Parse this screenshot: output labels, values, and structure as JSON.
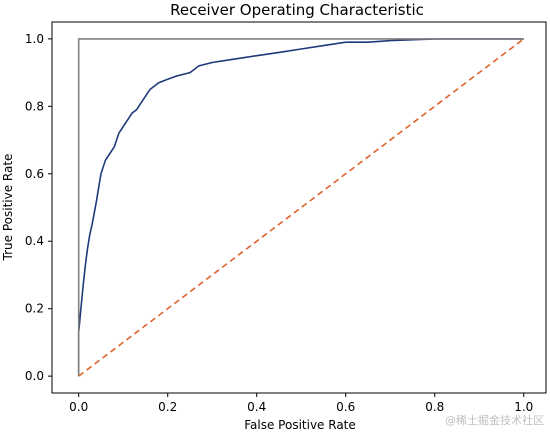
{
  "chart_data": {
    "type": "line",
    "title": "Receiver Operating Characteristic",
    "xlabel": "False Positive Rate",
    "ylabel": "True Positive Rate",
    "xlim": [
      -0.06,
      1.05
    ],
    "ylim": [
      -0.05,
      1.05
    ],
    "x_ticks": [
      "0.0",
      "0.2",
      "0.4",
      "0.6",
      "0.8",
      "1.0"
    ],
    "y_ticks": [
      "0.0",
      "0.2",
      "0.4",
      "0.6",
      "0.8",
      "1.0"
    ],
    "grid": false,
    "legend": "none",
    "series": [
      {
        "style": "solid",
        "color": "#1f3a7a",
        "x": [
          0.0,
          0.0,
          0.005,
          0.01,
          0.015,
          0.02,
          0.025,
          0.03,
          0.04,
          0.045,
          0.05,
          0.055,
          0.06,
          0.07,
          0.08,
          0.09,
          0.1,
          0.11,
          0.12,
          0.13,
          0.14,
          0.15,
          0.16,
          0.18,
          0.2,
          0.22,
          0.25,
          0.27,
          0.3,
          0.35,
          0.4,
          0.45,
          0.5,
          0.55,
          0.6,
          0.65,
          0.7,
          0.8,
          0.9,
          1.0
        ],
        "y": [
          0.0,
          0.13,
          0.2,
          0.27,
          0.33,
          0.38,
          0.42,
          0.45,
          0.52,
          0.56,
          0.6,
          0.62,
          0.64,
          0.66,
          0.68,
          0.72,
          0.74,
          0.76,
          0.78,
          0.79,
          0.81,
          0.83,
          0.85,
          0.87,
          0.88,
          0.89,
          0.9,
          0.92,
          0.93,
          0.94,
          0.95,
          0.96,
          0.97,
          0.98,
          0.99,
          0.99,
          0.995,
          1.0,
          1.0,
          1.0
        ]
      },
      {
        "style": "solid",
        "color": "#808080",
        "x": [
          0.0,
          0.0,
          1.0
        ],
        "y": [
          0.0,
          1.0,
          1.0
        ]
      },
      {
        "style": "dashed",
        "color": "#e0622a",
        "x": [
          0.0,
          1.0
        ],
        "y": [
          0.0,
          1.0
        ]
      }
    ]
  },
  "watermark": "@稀土掘金技术社区"
}
